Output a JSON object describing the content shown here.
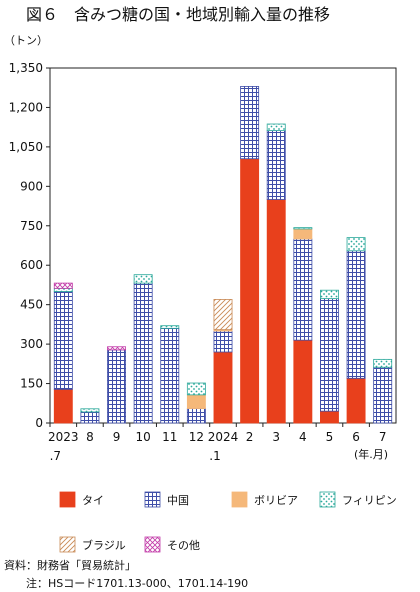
{
  "chart_data": {
    "type": "bar",
    "stacked": true,
    "title": "図６　含みつ糖の国・地域別輸入量の推移",
    "yunit": "（トン）",
    "xunit": "(年.月)",
    "ylim": [
      0,
      1350
    ],
    "yticks": [
      "0",
      "150",
      "300",
      "450",
      "600",
      "750",
      "900",
      "1,050",
      "1,200",
      "1,350"
    ],
    "ytick_values": [
      0,
      150,
      300,
      450,
      600,
      750,
      900,
      1050,
      1200,
      1350
    ],
    "grid": false,
    "categories": [
      {
        "label": "2023",
        "sub": ".7"
      },
      {
        "label": "8",
        "sub": ""
      },
      {
        "label": "9",
        "sub": ""
      },
      {
        "label": "10",
        "sub": ""
      },
      {
        "label": "11",
        "sub": ""
      },
      {
        "label": "12",
        "sub": ""
      },
      {
        "label": "2024",
        "sub": ".1"
      },
      {
        "label": "2",
        "sub": ""
      },
      {
        "label": "3",
        "sub": ""
      },
      {
        "label": "4",
        "sub": ""
      },
      {
        "label": "5",
        "sub": ""
      },
      {
        "label": "6",
        "sub": ""
      },
      {
        "label": "7",
        "sub": ""
      }
    ],
    "series": [
      {
        "name": "タイ",
        "color": "#e8401c",
        "pattern": "solid",
        "values": [
          128,
          0,
          0,
          0,
          0,
          0,
          270,
          1005,
          850,
          315,
          45,
          170,
          0
        ]
      },
      {
        "name": "中国",
        "color": "#3f4ea8",
        "pattern": "grid",
        "values": [
          372,
          42,
          278,
          532,
          360,
          55,
          80,
          275,
          262,
          385,
          428,
          485,
          212
        ]
      },
      {
        "name": "ボリビア",
        "color": "#f5b87a",
        "pattern": "solid",
        "values": [
          0,
          0,
          0,
          0,
          0,
          52,
          5,
          0,
          0,
          38,
          0,
          0,
          0
        ]
      },
      {
        "name": "フィリピン",
        "color": "#2aa89a",
        "pattern": "dots",
        "values": [
          12,
          12,
          0,
          32,
          10,
          45,
          0,
          0,
          25,
          5,
          32,
          50,
          30
        ]
      },
      {
        "name": "ブラジル",
        "color": "#c98a55",
        "pattern": "diag",
        "values": [
          0,
          0,
          0,
          0,
          0,
          0,
          115,
          0,
          0,
          0,
          0,
          0,
          0
        ]
      },
      {
        "name": "その他",
        "color": "#c23aa8",
        "pattern": "cross",
        "values": [
          20,
          0,
          12,
          0,
          0,
          0,
          0,
          0,
          0,
          0,
          0,
          0,
          0
        ]
      }
    ]
  },
  "notes": {
    "source": "資料：財務省「貿易統計」",
    "note": "注：HSコード1701.13-000、1701.14-190"
  }
}
